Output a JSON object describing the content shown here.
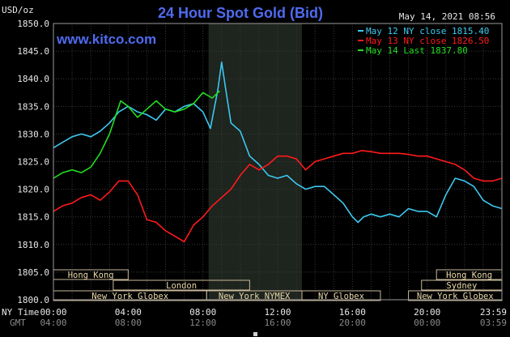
{
  "header": {
    "title": "24 Hour Spot Gold (Bid)",
    "unit": "USD/oz",
    "brand": "www.kitco.com",
    "timestamp": "May 14, 2021 08:56"
  },
  "colors": {
    "background": "#000000",
    "title": "#4f6bf0",
    "brand": "#4f6bf0",
    "axis_text": "#e8e8e8",
    "grid": "#3a3a3a",
    "shade": "#1e241e",
    "session_box": "#c8b89a",
    "session_text": "#e8d8a8",
    "sub_time": "#8a8a8a",
    "scroll_marker": "#cfcfcf"
  },
  "chart_data": {
    "type": "line",
    "title": "24 Hour Spot Gold (Bid)",
    "ylabel": "USD/oz",
    "ylim": [
      1800,
      1850
    ],
    "yticks": [
      1800,
      1805,
      1810,
      1815,
      1820,
      1825,
      1830,
      1835,
      1840,
      1845,
      1850
    ],
    "xlim": [
      0,
      24
    ],
    "grid": true,
    "legend_position": "top-right",
    "x_ticks": [
      {
        "x": 0,
        "label": "00:00",
        "sub": "04:00"
      },
      {
        "x": 4,
        "label": "04:00",
        "sub": "08:00"
      },
      {
        "x": 8,
        "label": "08:00",
        "sub": "12:00"
      },
      {
        "x": 12,
        "label": "12:00",
        "sub": "16:00"
      },
      {
        "x": 16,
        "label": "16:00",
        "sub": "20:00"
      },
      {
        "x": 20,
        "label": "20:00",
        "sub": "00:00"
      },
      {
        "x": 24,
        "label": "23:59",
        "sub": "03:59"
      }
    ],
    "x_row_labels": {
      "main": "NY Time",
      "sub": "GMT"
    },
    "shaded_range": [
      8.3,
      13.3
    ],
    "series": [
      {
        "name": "May 12 NY close 1815.40",
        "color": "#3cc8f0",
        "x": [
          0,
          0.5,
          1,
          1.5,
          2,
          2.5,
          3,
          3.5,
          4,
          4.5,
          5,
          5.5,
          6,
          6.5,
          7,
          7.5,
          8,
          8.4,
          8.8,
          9.0,
          9.2,
          9.5,
          10,
          10.5,
          11,
          11.5,
          12,
          12.5,
          13,
          13.5,
          14,
          14.5,
          15,
          15.5,
          16,
          16.3,
          16.6,
          17,
          17.5,
          18,
          18.5,
          19,
          19.5,
          20,
          20.5,
          21,
          21.5,
          22,
          22.5,
          23,
          23.5,
          24
        ],
        "y": [
          1827.5,
          1828.5,
          1829.5,
          1830.0,
          1829.5,
          1830.5,
          1832.0,
          1834.0,
          1835.0,
          1834.0,
          1833.5,
          1832.5,
          1834.5,
          1834.0,
          1835.0,
          1835.5,
          1834.0,
          1831.0,
          1838.0,
          1843.0,
          1838.5,
          1832.0,
          1830.5,
          1826.0,
          1824.5,
          1822.5,
          1822.0,
          1822.5,
          1821.0,
          1820.0,
          1820.5,
          1820.5,
          1819.0,
          1817.5,
          1815.0,
          1814.0,
          1815.0,
          1815.5,
          1815.0,
          1815.5,
          1815.0,
          1816.5,
          1816.0,
          1816.0,
          1815.0,
          1819.0,
          1822.0,
          1821.5,
          1820.5,
          1818.0,
          1817.0,
          1816.5
        ]
      },
      {
        "name": "May 13 NY close 1826.50",
        "color": "#ff1a1a",
        "x": [
          0,
          0.5,
          1,
          1.5,
          2,
          2.5,
          3,
          3.5,
          4,
          4.5,
          5,
          5.5,
          6,
          6.5,
          7,
          7.5,
          8,
          8.5,
          9,
          9.5,
          10,
          10.5,
          11,
          11.5,
          12,
          12.5,
          13,
          13.5,
          14,
          14.5,
          15,
          15.5,
          16,
          16.5,
          17,
          17.5,
          18,
          18.5,
          19,
          19.5,
          20,
          20.5,
          21,
          21.5,
          22,
          22.5,
          23,
          23.5,
          24
        ],
        "y": [
          1816.0,
          1817.0,
          1817.5,
          1818.5,
          1819.0,
          1818.0,
          1819.5,
          1821.5,
          1821.5,
          1819.0,
          1814.5,
          1814.0,
          1812.5,
          1811.5,
          1810.5,
          1813.5,
          1815.0,
          1817.0,
          1818.5,
          1820.0,
          1822.5,
          1824.5,
          1823.5,
          1824.5,
          1826.0,
          1826.0,
          1825.5,
          1823.5,
          1825.0,
          1825.5,
          1826.0,
          1826.5,
          1826.5,
          1827.0,
          1826.8,
          1826.5,
          1826.5,
          1826.5,
          1826.3,
          1826.0,
          1826.0,
          1825.5,
          1825.0,
          1824.5,
          1823.5,
          1822.0,
          1821.5,
          1821.5,
          1822.0
        ]
      },
      {
        "name": "May 14 Last 1837.80",
        "color": "#22dd22",
        "x": [
          0,
          0.5,
          1,
          1.5,
          2,
          2.5,
          3,
          3.3,
          3.6,
          4,
          4.5,
          5,
          5.5,
          6,
          6.5,
          7,
          7.5,
          8,
          8.5,
          8.9
        ],
        "y": [
          1822.0,
          1823.0,
          1823.5,
          1823.0,
          1824.0,
          1826.5,
          1830.0,
          1833.0,
          1836.0,
          1835.0,
          1833.0,
          1834.5,
          1836.0,
          1834.5,
          1834.0,
          1834.5,
          1835.5,
          1837.5,
          1836.5,
          1837.8
        ]
      }
    ],
    "sessions": [
      {
        "label": "Hong Kong",
        "row": 0,
        "start": 0,
        "end": 4
      },
      {
        "label": "Hong Kong",
        "row": 0,
        "start": 20.5,
        "end": 24
      },
      {
        "label": "London",
        "row": 1,
        "start": 3.2,
        "end": 10.5
      },
      {
        "label": "Sydney",
        "row": 1,
        "start": 19.7,
        "end": 24
      },
      {
        "label": "New York Globex",
        "row": 2,
        "start": 0,
        "end": 8.2
      },
      {
        "label": "New York NYMEX",
        "row": 2,
        "start": 8.2,
        "end": 13.3
      },
      {
        "label": "NY Globex",
        "row": 2,
        "start": 13.3,
        "end": 17.5
      },
      {
        "label": "New York Globex",
        "row": 2,
        "start": 19.0,
        "end": 24
      }
    ]
  }
}
